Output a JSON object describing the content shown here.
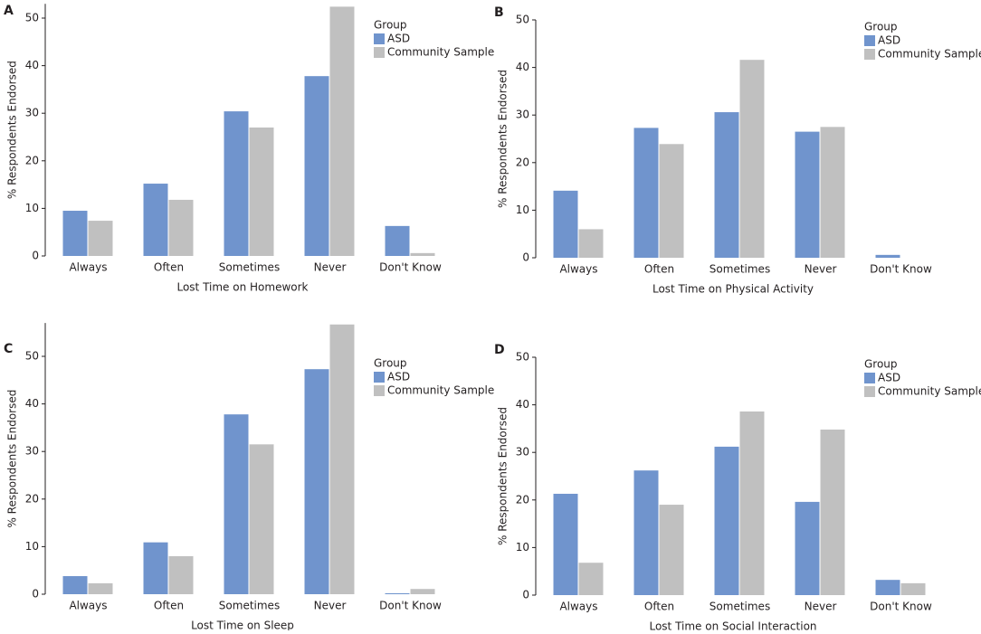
{
  "chart_data": [
    {
      "type": "bar",
      "label": "A",
      "xlabel": "Lost Time on Homework",
      "ylabel": "% Respondents Endorsed",
      "legend_title": "Group",
      "categories": [
        "Always",
        "Often",
        "Sometimes",
        "Never",
        "Don't Know"
      ],
      "series": [
        {
          "name": "ASD",
          "color": "#7094cd",
          "values": [
            9.5,
            15.2,
            30.4,
            37.8,
            6.3
          ]
        },
        {
          "name": "Community Sample",
          "color": "#c0c0c0",
          "values": [
            7.4,
            11.8,
            27.0,
            52.4,
            0.6
          ]
        }
      ],
      "ylim": [
        0,
        53
      ],
      "yticks": [
        0,
        10,
        20,
        30,
        40,
        50
      ]
    },
    {
      "type": "bar",
      "label": "B",
      "xlabel": "Lost Time on Physical Activity",
      "ylabel": "% Respondents Endorsed",
      "legend_title": "Group",
      "categories": [
        "Always",
        "Often",
        "Sometimes",
        "Never",
        "Don't Know"
      ],
      "series": [
        {
          "name": "ASD",
          "color": "#7094cd",
          "values": [
            14.1,
            27.3,
            30.6,
            26.5,
            0.6
          ]
        },
        {
          "name": "Community Sample",
          "color": "#c0c0c0",
          "values": [
            6.0,
            23.9,
            41.6,
            27.5,
            0
          ]
        }
      ],
      "ylim": [
        0,
        50
      ],
      "yticks": [
        0,
        10,
        20,
        30,
        40,
        50
      ]
    },
    {
      "type": "bar",
      "label": "C",
      "xlabel": "Lost Time on Sleep",
      "ylabel": "% Respondents Endorsed",
      "legend_title": "Group",
      "categories": [
        "Always",
        "Often",
        "Sometimes",
        "Never",
        "Don't Know"
      ],
      "series": [
        {
          "name": "ASD",
          "color": "#7094cd",
          "values": [
            3.8,
            10.9,
            37.8,
            47.3,
            0.2
          ]
        },
        {
          "name": "Community Sample",
          "color": "#c0c0c0",
          "values": [
            2.3,
            8.0,
            31.5,
            56.7,
            1.1
          ]
        }
      ],
      "ylim": [
        0,
        57
      ],
      "yticks": [
        0,
        10,
        20,
        30,
        40,
        50
      ]
    },
    {
      "type": "bar",
      "label": "D",
      "xlabel": "Lost Time on Social Interaction",
      "ylabel": "% Respondents Endorsed",
      "legend_title": "Group",
      "categories": [
        "Always",
        "Often",
        "Sometimes",
        "Never",
        "Don't Know"
      ],
      "series": [
        {
          "name": "ASD",
          "color": "#7094cd",
          "values": [
            21.3,
            26.2,
            31.2,
            19.6,
            3.2
          ]
        },
        {
          "name": "Community Sample",
          "color": "#c0c0c0",
          "values": [
            6.8,
            19.0,
            38.6,
            34.8,
            2.5
          ]
        }
      ],
      "ylim": [
        0,
        50
      ],
      "yticks": [
        0,
        10,
        20,
        30,
        40,
        50
      ]
    }
  ]
}
